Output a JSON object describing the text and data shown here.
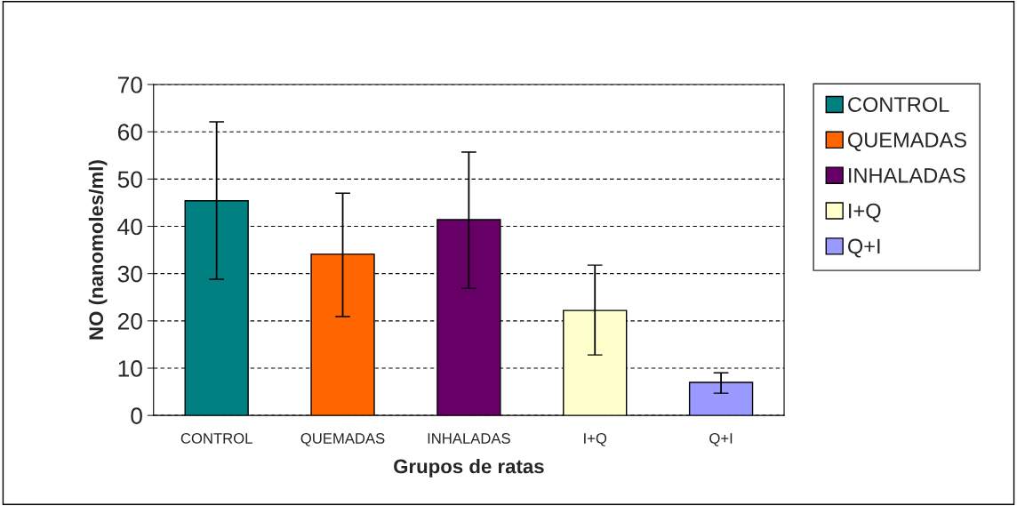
{
  "chart_data": {
    "type": "bar",
    "xlabel": "Grupos de ratas",
    "ylabel": "NO (nanomoles/ml)",
    "categories": [
      "CONTROL",
      "QUEMADAS",
      "INHALADAS",
      "I+Q",
      "Q+I"
    ],
    "series": [
      {
        "name": "CONTROL",
        "color": "#008080",
        "values": [
          45.4,
          null,
          null,
          null,
          null
        ],
        "errors": [
          [
            28.8,
            62.1
          ],
          null,
          null,
          null,
          null
        ]
      },
      {
        "name": "QUEMADAS",
        "color": "#ff6600",
        "values": [
          null,
          34.1,
          null,
          null,
          null
        ],
        "errors": [
          null,
          [
            20.9,
            47.0
          ],
          null,
          null,
          null
        ]
      },
      {
        "name": "INHALADAS",
        "color": "#660066",
        "values": [
          null,
          null,
          41.4,
          null,
          null
        ],
        "errors": [
          null,
          null,
          [
            26.9,
            55.7
          ],
          null,
          null
        ]
      },
      {
        "name": "I+Q",
        "color": "#ffffcc",
        "values": [
          null,
          null,
          null,
          22.2,
          null
        ],
        "errors": [
          null,
          null,
          null,
          [
            12.8,
            31.8
          ],
          null
        ]
      },
      {
        "name": "Q+I",
        "color": "#9999ff",
        "values": [
          null,
          null,
          null,
          null,
          7.0
        ],
        "errors": [
          null,
          null,
          null,
          null,
          [
            4.7,
            9.0
          ]
        ]
      }
    ],
    "ylim": [
      0,
      70
    ],
    "yticks": [
      0,
      10,
      20,
      30,
      40,
      50,
      60,
      70
    ],
    "grid": "y",
    "legend": "right"
  }
}
